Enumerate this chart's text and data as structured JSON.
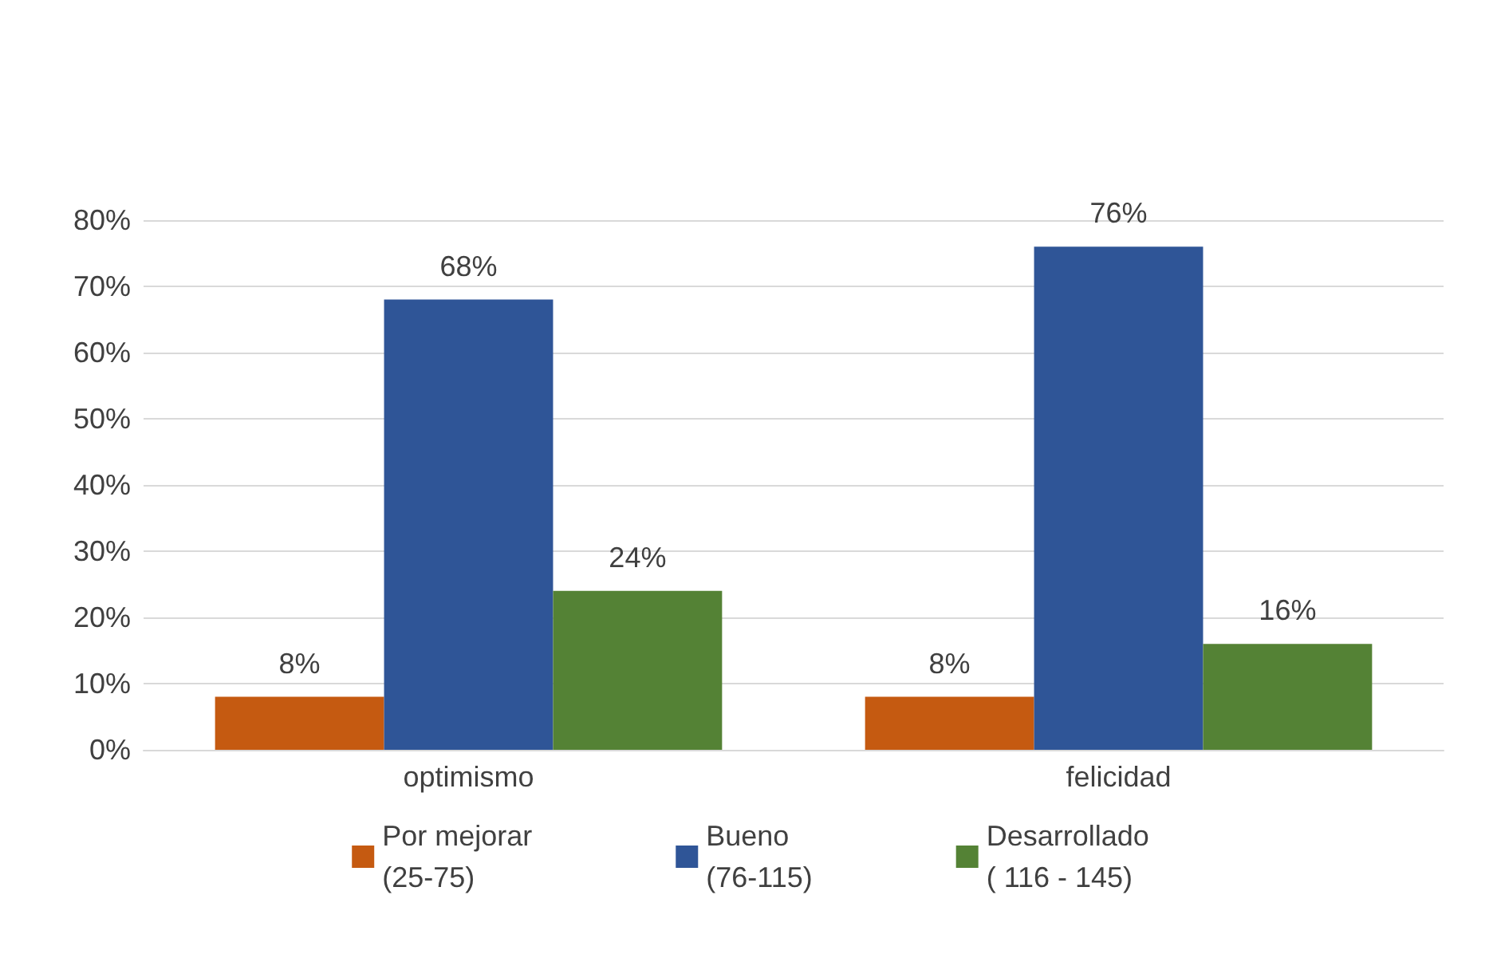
{
  "chart_data": {
    "type": "bar",
    "categories": [
      "optimismo",
      "felicidad"
    ],
    "series": [
      {
        "name": "Por mejorar\n(25-75)",
        "color": "#c55a11",
        "values": [
          8,
          8
        ],
        "value_labels": [
          "8%",
          "8%"
        ]
      },
      {
        "name": "Bueno\n(76-115)",
        "color": "#2f5597",
        "values": [
          68,
          76
        ],
        "value_labels": [
          "68%",
          "76%"
        ]
      },
      {
        "name": "Desarrollado\n( 116 - 145)",
        "color": "#548235",
        "values": [
          24,
          16
        ],
        "value_labels": [
          "24%",
          "16%"
        ]
      }
    ],
    "ylim": [
      0,
      80
    ],
    "yticks": [
      {
        "value": 0,
        "label": "0%"
      },
      {
        "value": 10,
        "label": "10%"
      },
      {
        "value": 20,
        "label": "20%"
      },
      {
        "value": 30,
        "label": "30%"
      },
      {
        "value": 40,
        "label": "40%"
      },
      {
        "value": 50,
        "label": "50%"
      },
      {
        "value": 60,
        "label": "60%"
      },
      {
        "value": 70,
        "label": "70%"
      },
      {
        "value": 80,
        "label": "80%"
      }
    ],
    "grid": "y",
    "legend": "bottom"
  }
}
